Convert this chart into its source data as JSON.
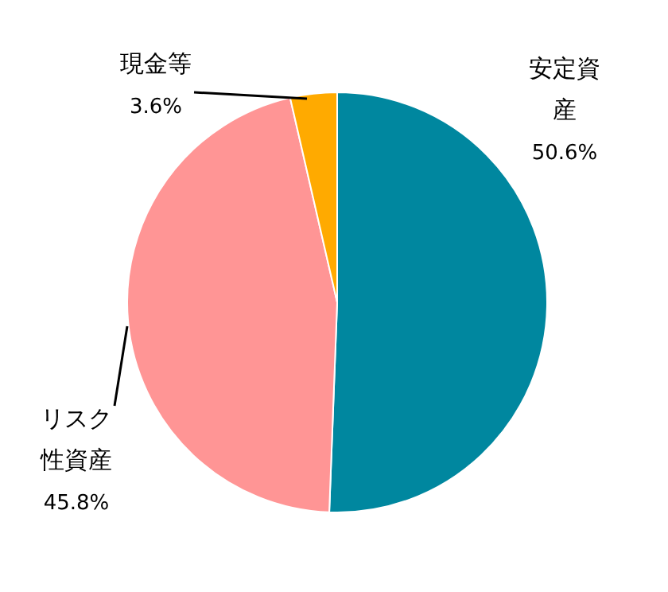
{
  "chart_data": {
    "type": "pie",
    "categories": [
      "安定資産",
      "リスク性資産",
      "現金等"
    ],
    "values": [
      50.6,
      45.8,
      3.6
    ],
    "colors": [
      "#00879f",
      "#ff9595",
      "#ffaa00"
    ],
    "value_labels": [
      "50.6%",
      "45.8%",
      "3.6%"
    ]
  }
}
